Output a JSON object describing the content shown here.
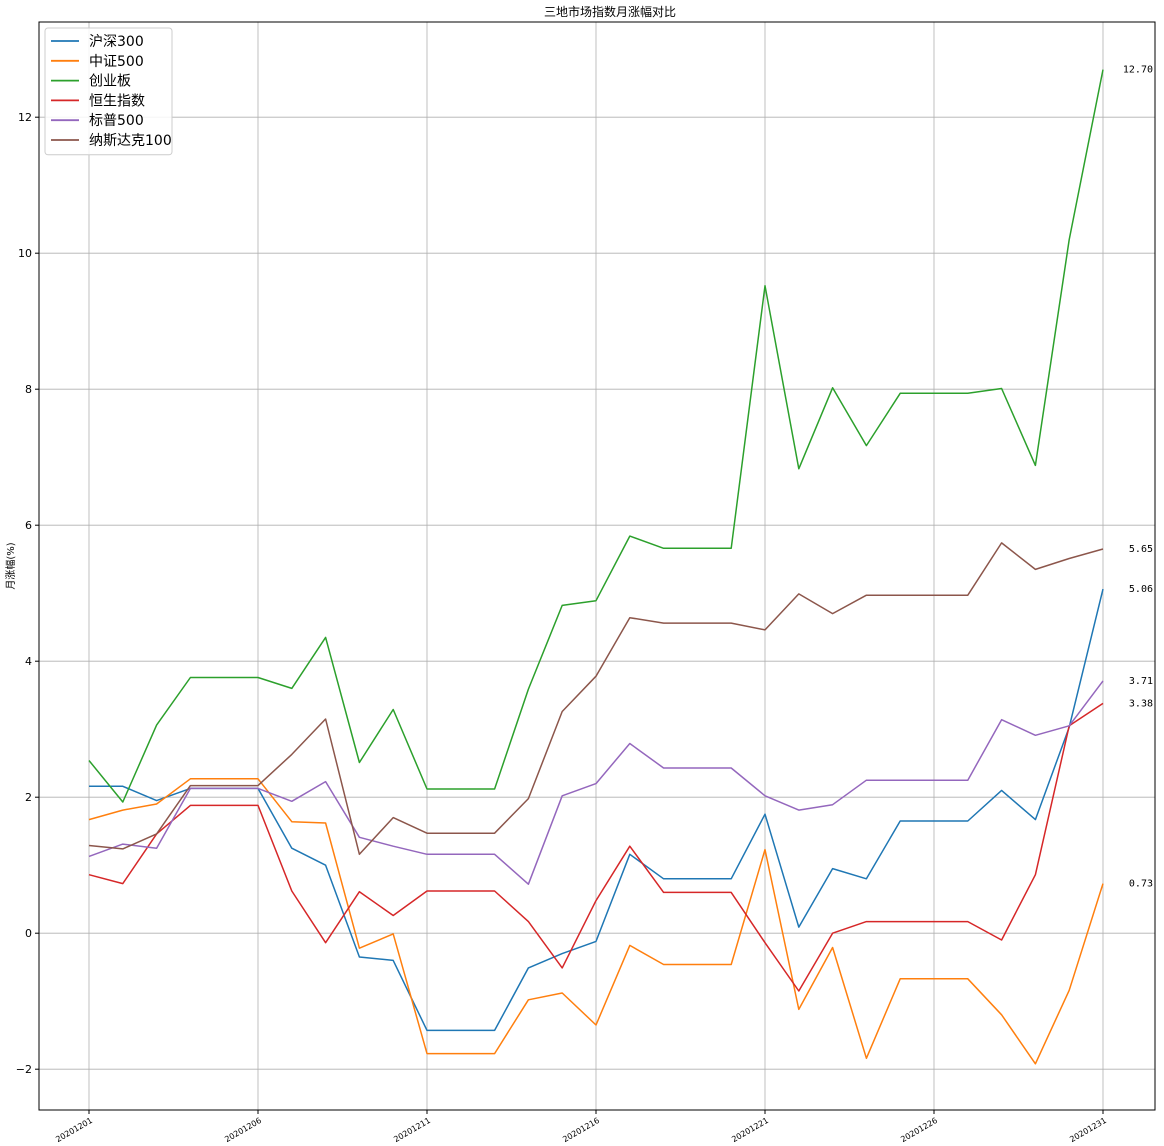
{
  "chart_data": {
    "type": "line",
    "title": "三地市场指数月涨幅对比",
    "xlabel": "",
    "ylabel": "月涨幅(%)",
    "ylim": [
      -2.6,
      13.4
    ],
    "y_ticks": [
      -2,
      0,
      2,
      4,
      6,
      8,
      10,
      12
    ],
    "x": [
      "20201201",
      "20201202",
      "20201203",
      "20201204",
      "20201205",
      "20201206",
      "20201207",
      "20201208",
      "20201209",
      "20201210",
      "20201211",
      "20201212",
      "20201213",
      "20201214",
      "20201215",
      "20201216",
      "20201217",
      "20201218",
      "20201219",
      "20201220",
      "20201221",
      "20201222",
      "20201223",
      "20201224",
      "20201225",
      "20201226",
      "20201227",
      "20201228",
      "20201229",
      "20201230",
      "20201231"
    ],
    "x_tick_labels": [
      "20201201",
      "20201206",
      "20201211",
      "20201216",
      "20201221",
      "20201226",
      "20201231"
    ],
    "grid": true,
    "legend_position": "top-left",
    "series": [
      {
        "name": "沪深300",
        "color": "#1f77b4",
        "values": [
          2.16,
          2.16,
          1.95,
          2.13,
          2.13,
          2.13,
          1.25,
          1.0,
          -0.35,
          -0.4,
          -1.43,
          -1.43,
          -1.43,
          -0.51,
          -0.3,
          -0.12,
          1.16,
          0.8,
          0.8,
          0.8,
          1.75,
          0.09,
          0.95,
          0.8,
          1.65,
          1.65,
          1.65,
          2.1,
          1.67,
          3.03,
          5.06
        ]
      },
      {
        "name": "中证500",
        "color": "#ff7f0e",
        "values": [
          1.67,
          1.81,
          1.9,
          2.27,
          2.27,
          2.27,
          1.64,
          1.62,
          -0.22,
          -0.01,
          -1.77,
          -1.77,
          -1.77,
          -0.98,
          -0.88,
          -1.35,
          -0.18,
          -0.46,
          -0.46,
          -0.46,
          1.23,
          -1.12,
          -0.21,
          -1.84,
          -0.67,
          -0.67,
          -0.67,
          -1.2,
          -1.92,
          -0.84,
          0.73
        ]
      },
      {
        "name": "创业板",
        "color": "#2ca02c",
        "values": [
          2.54,
          1.93,
          3.06,
          3.76,
          3.76,
          3.76,
          3.6,
          4.35,
          2.51,
          3.29,
          2.12,
          2.12,
          2.12,
          3.59,
          4.82,
          4.89,
          5.84,
          5.66,
          5.66,
          5.66,
          9.52,
          6.83,
          8.02,
          7.17,
          7.94,
          7.94,
          7.94,
          8.01,
          6.88,
          10.2,
          12.7
        ]
      },
      {
        "name": "恒生指数",
        "color": "#d62728",
        "values": [
          0.86,
          0.73,
          1.46,
          1.88,
          1.88,
          1.88,
          0.62,
          -0.14,
          0.61,
          0.26,
          0.62,
          0.62,
          0.62,
          0.17,
          -0.51,
          0.48,
          1.28,
          0.6,
          0.6,
          0.6,
          -0.14,
          -0.85,
          0.0,
          0.17,
          0.17,
          0.17,
          0.17,
          -0.1,
          0.86,
          3.05,
          3.38
        ]
      },
      {
        "name": "标普500",
        "color": "#9467bd",
        "values": [
          1.13,
          1.31,
          1.25,
          2.13,
          2.13,
          2.13,
          1.94,
          2.23,
          1.41,
          1.28,
          1.16,
          1.16,
          1.16,
          0.72,
          2.02,
          2.2,
          2.79,
          2.43,
          2.43,
          2.43,
          2.02,
          1.81,
          1.89,
          2.25,
          2.25,
          2.25,
          2.25,
          3.14,
          2.91,
          3.05,
          3.71
        ]
      },
      {
        "name": "纳斯达克100",
        "color": "#8c564b",
        "values": [
          1.29,
          1.24,
          1.46,
          2.17,
          2.17,
          2.17,
          2.63,
          3.15,
          1.16,
          1.7,
          1.47,
          1.47,
          1.47,
          1.98,
          3.26,
          3.78,
          4.64,
          4.56,
          4.56,
          4.56,
          4.46,
          4.99,
          4.7,
          4.97,
          4.97,
          4.97,
          4.97,
          5.74,
          5.35,
          5.51,
          5.65
        ]
      }
    ],
    "end_labels": [
      {
        "text": "12.70",
        "value": 12.7
      },
      {
        "text": "5.65",
        "value": 5.65
      },
      {
        "text": "5.06",
        "value": 5.06
      },
      {
        "text": "3.71",
        "value": 3.71
      },
      {
        "text": "3.38",
        "value": 3.38
      },
      {
        "text": "0.73",
        "value": 0.73
      }
    ]
  }
}
